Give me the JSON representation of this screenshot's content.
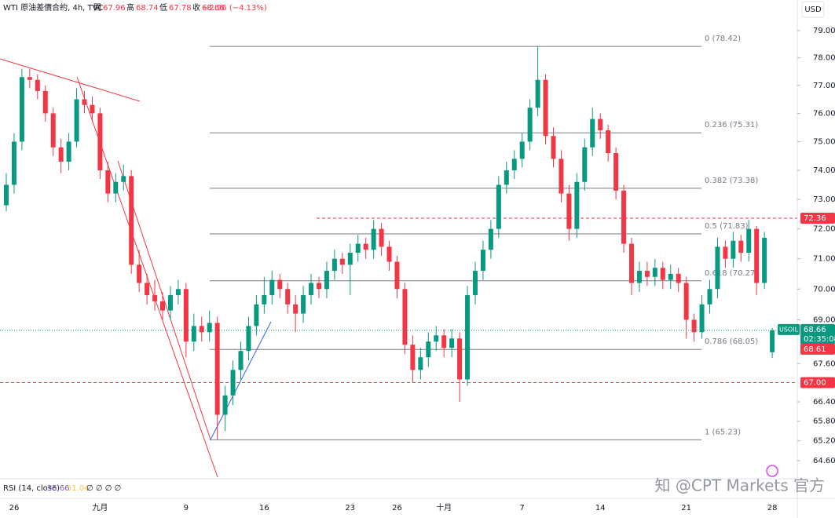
{
  "chart_data": {
    "type": "candlestick",
    "header": {
      "symbol": "WTI 原油差價合約, 4h, TVC",
      "open_label": "開",
      "high_label": "高",
      "low_label": "低",
      "close_label": "收",
      "change": "−2.96 (−4.13%)"
    },
    "currency": "USD",
    "log_scale": true,
    "ylim": [
      64.1,
      80.14
    ],
    "yticks": [
      {
        "value": 79,
        "label": "79.00"
      },
      {
        "value": 78,
        "label": "78.00"
      },
      {
        "value": 77,
        "label": "77.00"
      },
      {
        "value": 76,
        "label": "76.00"
      },
      {
        "value": 75,
        "label": "75.00"
      },
      {
        "value": 74,
        "label": "74.00"
      },
      {
        "value": 73,
        "label": "73.00"
      },
      {
        "value": 72,
        "label": "72.00"
      },
      {
        "value": 71,
        "label": "71.00"
      },
      {
        "value": 70,
        "label": "70.00"
      },
      {
        "value": 69,
        "label": "69.00"
      },
      {
        "value": 67.6,
        "label": "67.60"
      },
      {
        "value": 66.4,
        "label": "66.40"
      },
      {
        "value": 65.8,
        "label": "65.80"
      },
      {
        "value": 65.2,
        "label": "65.20"
      },
      {
        "value": 64.6,
        "label": "64.60"
      }
    ],
    "up_color": "#089981",
    "down_color": "#f23645",
    "categories": [
      null,
      "26",
      null,
      null,
      null,
      null,
      null,
      null,
      null,
      null,
      null,
      null,
      "九月",
      null,
      null,
      null,
      null,
      null,
      null,
      null,
      null,
      null,
      null,
      "9",
      null,
      null,
      null,
      null,
      null,
      null,
      null,
      null,
      null,
      "16",
      null,
      null,
      null,
      null,
      null,
      null,
      null,
      null,
      null,
      null,
      "23",
      null,
      null,
      null,
      null,
      null,
      "26",
      null,
      null,
      null,
      null,
      null,
      "十月",
      null,
      null,
      null,
      null,
      null,
      null,
      null,
      null,
      null,
      "7",
      null,
      null,
      null,
      null,
      null,
      null,
      null,
      null,
      null,
      "14",
      null,
      null,
      null,
      null,
      null,
      null,
      null,
      null,
      null,
      null,
      "21",
      null,
      null,
      null,
      null,
      null,
      null,
      null,
      null,
      null,
      null,
      "28"
    ],
    "candles": [
      [
        72.8,
        73.9,
        72.6,
        73.5
      ],
      [
        73.5,
        75.3,
        73.2,
        75.0
      ],
      [
        75.0,
        77.6,
        74.7,
        77.3
      ],
      [
        77.3,
        77.6,
        76.9,
        77.2
      ],
      [
        77.2,
        77.4,
        76.5,
        76.8
      ],
      [
        76.8,
        77.0,
        75.7,
        76.0
      ],
      [
        76.0,
        76.2,
        74.5,
        74.8
      ],
      [
        74.8,
        75.1,
        73.9,
        74.3
      ],
      [
        74.3,
        75.3,
        74.0,
        75.0
      ],
      [
        75.0,
        76.9,
        74.8,
        76.5
      ],
      [
        76.5,
        76.8,
        76.0,
        76.3
      ],
      [
        76.3,
        76.6,
        75.7,
        76.0
      ],
      [
        76.0,
        76.2,
        73.7,
        74.0
      ],
      [
        74.0,
        74.3,
        72.9,
        73.2
      ],
      [
        73.2,
        73.9,
        72.9,
        73.6
      ],
      [
        73.6,
        74.2,
        73.3,
        73.8
      ],
      [
        73.8,
        74.0,
        70.5,
        70.8
      ],
      [
        70.8,
        71.3,
        69.9,
        70.2
      ],
      [
        70.2,
        70.5,
        69.5,
        69.8
      ],
      [
        69.8,
        70.3,
        69.3,
        69.6
      ],
      [
        69.6,
        69.9,
        69.0,
        69.3
      ],
      [
        69.3,
        70.1,
        69.0,
        69.8
      ],
      [
        69.8,
        70.3,
        69.5,
        70.0
      ],
      [
        70.0,
        70.2,
        67.8,
        68.3
      ],
      [
        68.3,
        69.2,
        68.0,
        68.8
      ],
      [
        68.8,
        69.1,
        68.3,
        68.6
      ],
      [
        68.6,
        69.3,
        68.3,
        68.9
      ],
      [
        68.9,
        69.1,
        65.23,
        66.0
      ],
      [
        66.0,
        66.9,
        65.5,
        66.6
      ],
      [
        66.6,
        67.7,
        66.3,
        67.4
      ],
      [
        67.4,
        68.3,
        67.1,
        68.0
      ],
      [
        68.0,
        69.1,
        67.7,
        68.8
      ],
      [
        68.8,
        69.8,
        68.5,
        69.5
      ],
      [
        69.5,
        70.4,
        69.2,
        69.8
      ],
      [
        69.8,
        70.6,
        69.5,
        70.3
      ],
      [
        70.3,
        70.5,
        69.7,
        70.0
      ],
      [
        70.0,
        70.2,
        69.2,
        69.5
      ],
      [
        69.5,
        69.8,
        68.6,
        69.2
      ],
      [
        69.2,
        70.1,
        68.9,
        69.8
      ],
      [
        69.8,
        70.5,
        69.5,
        70.2
      ],
      [
        70.2,
        70.4,
        69.7,
        70.0
      ],
      [
        70.0,
        70.9,
        69.7,
        70.6
      ],
      [
        70.6,
        71.3,
        70.3,
        71.0
      ],
      [
        71.0,
        71.2,
        70.5,
        70.8
      ],
      [
        70.8,
        71.5,
        69.8,
        71.2
      ],
      [
        71.2,
        71.8,
        70.9,
        71.5
      ],
      [
        71.5,
        71.7,
        71.0,
        71.3
      ],
      [
        71.3,
        72.3,
        71.0,
        72.0
      ],
      [
        72.0,
        72.2,
        71.1,
        71.4
      ],
      [
        71.4,
        71.6,
        70.6,
        70.9
      ],
      [
        70.9,
        71.1,
        69.7,
        70.0
      ],
      [
        70.0,
        70.2,
        67.9,
        68.2
      ],
      [
        68.2,
        68.5,
        67.0,
        67.4
      ],
      [
        67.4,
        68.1,
        67.1,
        67.8
      ],
      [
        67.8,
        68.6,
        67.5,
        68.3
      ],
      [
        68.3,
        68.8,
        68.0,
        68.5
      ],
      [
        68.5,
        68.7,
        67.8,
        68.1
      ],
      [
        68.1,
        68.7,
        67.8,
        68.4
      ],
      [
        68.4,
        68.6,
        66.4,
        67.1
      ],
      [
        67.1,
        70.1,
        66.9,
        69.8
      ],
      [
        69.8,
        70.9,
        69.5,
        70.6
      ],
      [
        70.6,
        71.6,
        70.3,
        71.3
      ],
      [
        71.3,
        72.3,
        71.0,
        72.0
      ],
      [
        72.0,
        73.8,
        71.7,
        73.5
      ],
      [
        73.5,
        74.3,
        73.2,
        74.0
      ],
      [
        74.0,
        74.7,
        73.7,
        74.4
      ],
      [
        74.4,
        75.3,
        74.1,
        75.0
      ],
      [
        75.0,
        76.5,
        74.7,
        76.2
      ],
      [
        76.2,
        78.42,
        75.9,
        77.2
      ],
      [
        77.2,
        77.4,
        74.9,
        75.2
      ],
      [
        75.2,
        75.5,
        74.1,
        74.4
      ],
      [
        74.4,
        74.7,
        72.9,
        73.2
      ],
      [
        73.2,
        73.5,
        71.6,
        72.0
      ],
      [
        72.0,
        73.9,
        71.7,
        73.6
      ],
      [
        73.6,
        75.1,
        73.3,
        74.8
      ],
      [
        74.8,
        76.2,
        74.5,
        75.8
      ],
      [
        75.8,
        76.0,
        75.1,
        75.4
      ],
      [
        75.4,
        75.6,
        74.3,
        74.6
      ],
      [
        74.6,
        74.8,
        73.0,
        73.3
      ],
      [
        73.3,
        73.5,
        71.2,
        71.5
      ],
      [
        71.5,
        71.7,
        69.8,
        70.2
      ],
      [
        70.2,
        70.9,
        69.9,
        70.6
      ],
      [
        70.6,
        70.9,
        70.1,
        70.4
      ],
      [
        70.4,
        71.0,
        70.1,
        70.7
      ],
      [
        70.7,
        70.9,
        70.0,
        70.3
      ],
      [
        70.3,
        70.8,
        70.0,
        70.5
      ],
      [
        70.5,
        70.7,
        69.9,
        70.2
      ],
      [
        70.2,
        70.4,
        68.4,
        69.0
      ],
      [
        69.0,
        69.2,
        68.3,
        68.6
      ],
      [
        68.6,
        69.8,
        68.4,
        69.5
      ],
      [
        69.5,
        70.3,
        69.2,
        70.0
      ],
      [
        70.0,
        71.7,
        69.7,
        71.4
      ],
      [
        71.4,
        71.6,
        70.7,
        71.0
      ],
      [
        71.0,
        71.9,
        70.7,
        71.6
      ],
      [
        71.6,
        71.8,
        70.9,
        71.2
      ],
      [
        71.2,
        72.3,
        70.9,
        72.0
      ],
      [
        72.0,
        72.1,
        69.8,
        70.2
      ],
      [
        70.2,
        71.9,
        70.0,
        71.7
      ],
      [
        67.96,
        68.74,
        67.78,
        68.66
      ]
    ],
    "fib_levels": [
      {
        "value": 78.42,
        "label": "0 (78.42)"
      },
      {
        "value": 75.31,
        "label": "0.236 (75.31)"
      },
      {
        "value": 73.38,
        "label": "0.382 (73.38)"
      },
      {
        "value": 71.83,
        "label": "0.5 (71.83)"
      },
      {
        "value": 70.27,
        "label": "0.618 (70.27)"
      },
      {
        "value": 68.05,
        "label": "0.786 (68.05)"
      },
      {
        "value": 65.23,
        "label": "1 (65.23)"
      }
    ],
    "resistance": 72.36,
    "support": {
      "value": 67,
      "label": "67.00"
    },
    "symbol_tag": "USOIL",
    "countdown": "02:35:08",
    "bid": 68.61,
    "rsi": {
      "label": "RSI (14, close)",
      "value": 35.66,
      "ma": 51.04,
      "extra": "∅ ∅ ∅ ∅"
    },
    "watermark": "知 @CPT Markets 官方"
  }
}
